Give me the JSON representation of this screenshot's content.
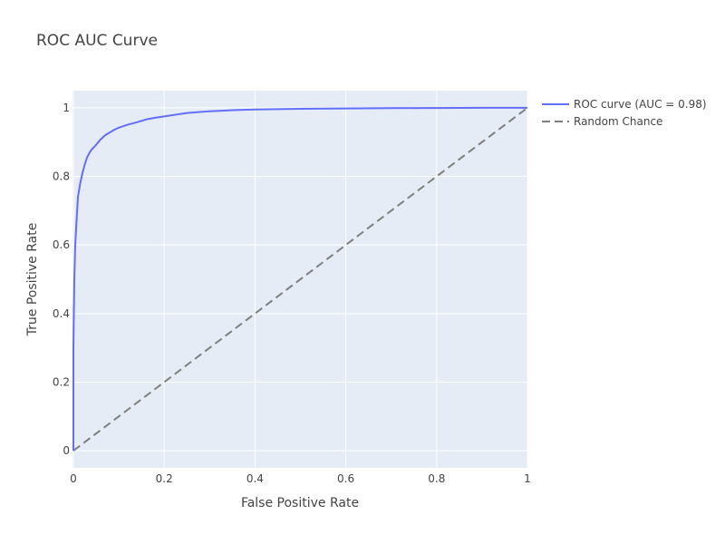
{
  "chart_data": {
    "type": "line",
    "title": "ROC AUC Curve",
    "xlabel": "False Positive Rate",
    "ylabel": "True Positive Rate",
    "xlim": [
      -0.002,
      1.0
    ],
    "ylim": [
      -0.05,
      1.05
    ],
    "xticks": [
      0,
      0.2,
      0.4,
      0.6,
      0.8,
      1
    ],
    "xtick_labels": [
      "0",
      "0.2",
      "0.4",
      "0.6",
      "0.8",
      "1"
    ],
    "yticks": [
      0,
      0.2,
      0.4,
      0.6,
      0.8,
      1
    ],
    "ytick_labels": [
      "0",
      "0.2",
      "0.4",
      "0.6",
      "0.8",
      "1"
    ],
    "grid": true,
    "legend_position": "top-right, outside plot",
    "series": [
      {
        "name": "ROC curve (AUC = 0.98)",
        "color": "#636efa",
        "dash": "solid",
        "x": [
          0,
          0,
          0.002,
          0.004,
          0.006,
          0.01,
          0.015,
          0.02,
          0.025,
          0.03,
          0.035,
          0.04,
          0.05,
          0.06,
          0.07,
          0.08,
          0.09,
          0.1,
          0.12,
          0.14,
          0.16,
          0.18,
          0.2,
          0.25,
          0.3,
          0.35,
          0.4,
          0.5,
          0.6,
          0.7,
          0.8,
          0.9,
          1.0
        ],
        "y": [
          0,
          0.3,
          0.5,
          0.6,
          0.65,
          0.74,
          0.78,
          0.81,
          0.835,
          0.855,
          0.868,
          0.878,
          0.892,
          0.908,
          0.92,
          0.928,
          0.936,
          0.942,
          0.951,
          0.958,
          0.966,
          0.971,
          0.975,
          0.985,
          0.99,
          0.993,
          0.995,
          0.997,
          0.998,
          0.999,
          0.9995,
          1.0,
          1.0
        ]
      },
      {
        "name": "Random Chance",
        "color": "#7f7f7f",
        "dash": "dash",
        "x": [
          0,
          1
        ],
        "y": [
          0,
          1
        ]
      }
    ]
  },
  "colors": {
    "plot_background": "#e5ecf6",
    "grid": "#ffffff",
    "text": "#444444"
  }
}
